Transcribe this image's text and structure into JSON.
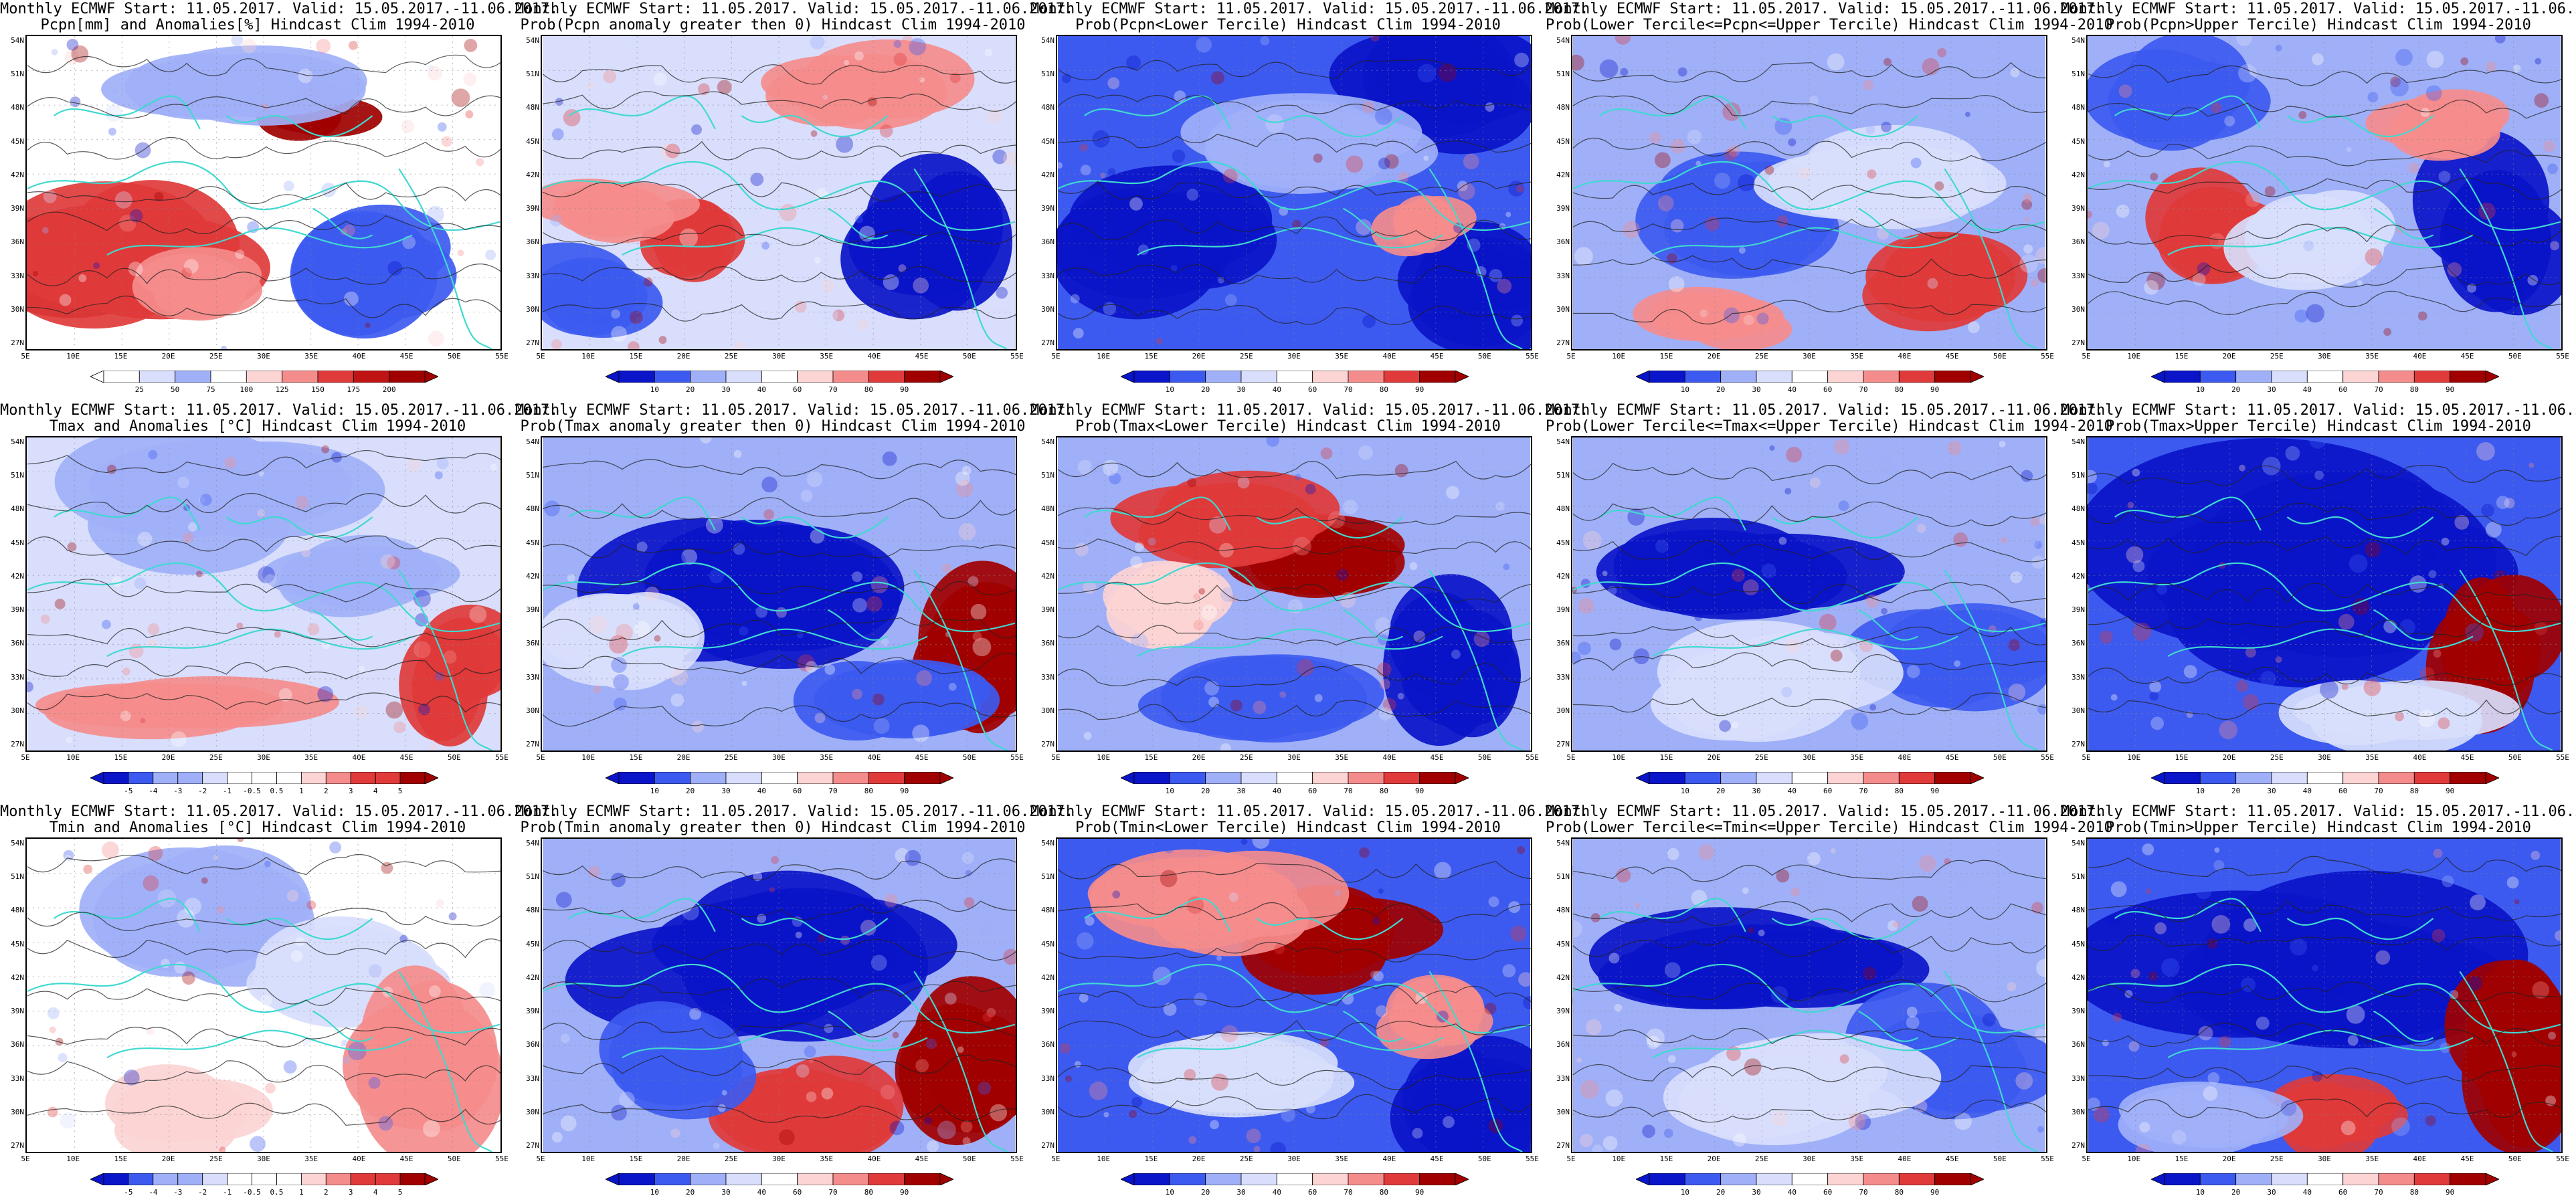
{
  "common": {
    "line1": "Monthly ECMWF Start: 11.05.2017. Valid: 15.05.2017.-11.06.2017.",
    "lat_labels": [
      "54N",
      "51N",
      "48N",
      "45N",
      "42N",
      "39N",
      "36N",
      "33N",
      "30N",
      "27N"
    ],
    "lon_labels": [
      "5E",
      "10E",
      "15E",
      "20E",
      "25E",
      "30E",
      "35E",
      "40E",
      "45E",
      "50E",
      "55E"
    ]
  },
  "colors": {
    "dark_blue": "#0a14c8",
    "mid_blue": "#3c5af0",
    "light_blue": "#9fb0f8",
    "pale_blue": "#d8defc",
    "pale_red": "#fcd4d4",
    "light_red": "#f58c8c",
    "mid_red": "#e03a3a",
    "dark_red": "#a00000",
    "coast_line": "#3fd9d0",
    "contour_line": "#222222"
  },
  "rows": [
    {
      "variable": "Pcpn",
      "panels": [
        {
          "title2": "Pcpn[mm] and Anomalies[%] Hindcast Clim 1994-2010",
          "colorbar": [
            "25",
            "50",
            "75",
            "100",
            "125",
            "150",
            "175",
            "200"
          ]
        },
        {
          "title2": "Prob(Pcpn anomaly greater then 0) Hindcast Clim 1994-2010",
          "colorbar": [
            "10",
            "20",
            "30",
            "40",
            "60",
            "70",
            "80",
            "90"
          ]
        },
        {
          "title2": "Prob(Pcpn<Lower Tercile) Hindcast Clim 1994-2010",
          "colorbar": [
            "10",
            "20",
            "30",
            "40",
            "60",
            "70",
            "80",
            "90"
          ]
        },
        {
          "title2": "Prob(Lower Tercile<=Pcpn<=Upper Tercile) Hindcast Clim 1994-2010",
          "colorbar": [
            "10",
            "20",
            "30",
            "40",
            "60",
            "70",
            "80",
            "90"
          ]
        },
        {
          "title2": "Prob(Pcpn>Upper Tercile) Hindcast Clim 1994-2010",
          "colorbar": [
            "10",
            "20",
            "30",
            "40",
            "60",
            "70",
            "80",
            "90"
          ]
        }
      ]
    },
    {
      "variable": "Tmax",
      "panels": [
        {
          "title2": "Tmax and Anomalies [°C] Hindcast Clim 1994-2010",
          "colorbar": [
            "-5",
            "-4",
            "-3",
            "-2",
            "-1",
            "-0.5",
            "0.5",
            "1",
            "2",
            "3",
            "4",
            "5"
          ]
        },
        {
          "title2": "Prob(Tmax anomaly greater then 0) Hindcast Clim 1994-2010",
          "colorbar": [
            "10",
            "20",
            "30",
            "40",
            "60",
            "70",
            "80",
            "90"
          ]
        },
        {
          "title2": "Prob(Tmax<Lower Tercile) Hindcast Clim 1994-2010",
          "colorbar": [
            "10",
            "20",
            "30",
            "40",
            "60",
            "70",
            "80",
            "90"
          ]
        },
        {
          "title2": "Prob(Lower Tercile<=Tmax<=Upper Tercile) Hindcast Clim 1994-2010",
          "colorbar": [
            "10",
            "20",
            "30",
            "40",
            "60",
            "70",
            "80",
            "90"
          ]
        },
        {
          "title2": "Prob(Tmax>Upper Tercile) Hindcast Clim 1994-2010",
          "colorbar": [
            "10",
            "20",
            "30",
            "40",
            "60",
            "70",
            "80",
            "90"
          ]
        }
      ]
    },
    {
      "variable": "Tmin",
      "panels": [
        {
          "title2": "Tmin and Anomalies [°C] Hindcast Clim 1994-2010",
          "colorbar": [
            "-5",
            "-4",
            "-3",
            "-2",
            "-1",
            "-0.5",
            "0.5",
            "1",
            "2",
            "3",
            "4",
            "5"
          ]
        },
        {
          "title2": "Prob(Tmin anomaly greater then 0) Hindcast Clim 1994-2010",
          "colorbar": [
            "10",
            "20",
            "30",
            "40",
            "60",
            "70",
            "80",
            "90"
          ]
        },
        {
          "title2": "Prob(Tmin<Lower Tercile) Hindcast Clim 1994-2010",
          "colorbar": [
            "10",
            "20",
            "30",
            "40",
            "60",
            "70",
            "80",
            "90"
          ]
        },
        {
          "title2": "Prob(Lower Tercile<=Tmin<=Upper Tercile) Hindcast Clim 1994-2010",
          "colorbar": [
            "10",
            "20",
            "30",
            "40",
            "60",
            "70",
            "80",
            "90"
          ]
        },
        {
          "title2": "Prob(Tmin>Upper Tercile) Hindcast Clim 1994-2010",
          "colorbar": [
            "10",
            "20",
            "30",
            "40",
            "60",
            "70",
            "80",
            "90"
          ]
        }
      ]
    }
  ]
}
